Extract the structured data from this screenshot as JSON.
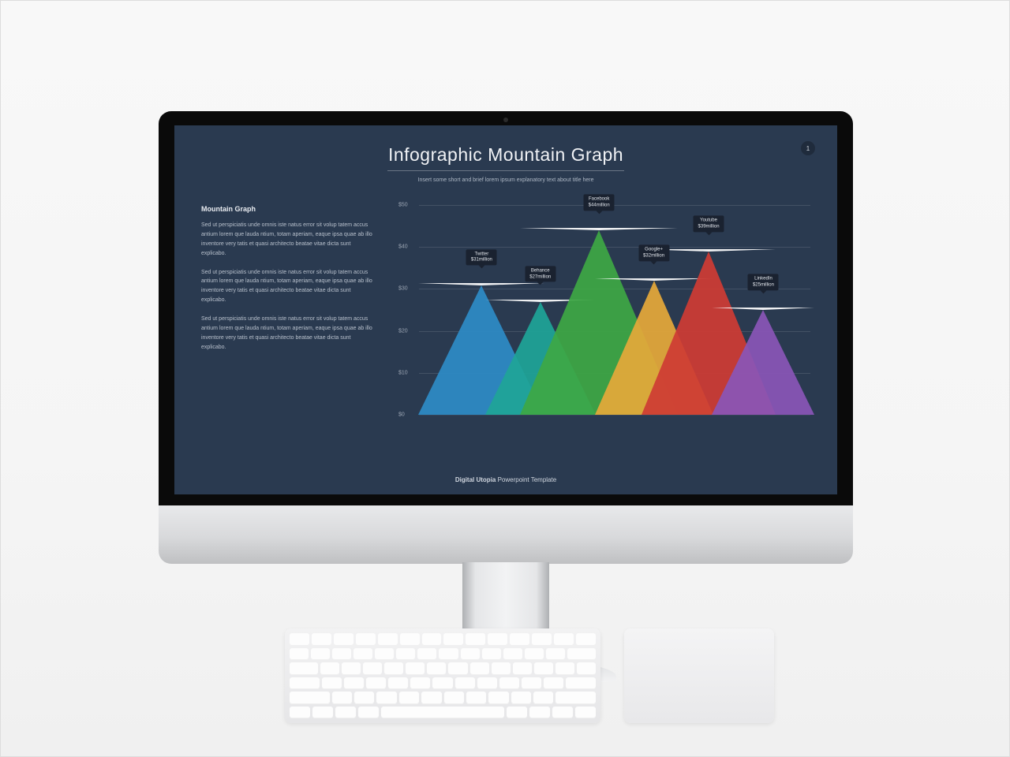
{
  "slide": {
    "background_color": "#2a3a50",
    "page_number": "1",
    "title": "Infographic Mountain Graph",
    "title_fontsize": 23,
    "title_color": "#f0f2f5",
    "subtitle": "Insert some short and brief lorem ipsum explanatory text about title here",
    "subtitle_fontsize": 7
  },
  "sidebar": {
    "heading": "Mountain Graph",
    "paragraphs": [
      "Sed ut perspiciatis unde omnis iste natus error sit volup tatem accus antium lorem que lauda ntium, totam aperiam, eaque ipsa quae ab illo inventore very tatis et quasi architecto beatae vitae dicta sunt explicabo.",
      "Sed ut perspiciatis unde omnis iste natus error sit volup tatem accus antium lorem que lauda ntium, totam aperiam, eaque ipsa quae ab illo inventore very tatis et quasi architecto beatae vitae dicta sunt explicabo.",
      "Sed ut perspiciatis unde omnis iste natus error sit volup tatem accus antium lorem que lauda ntium, totam aperiam, eaque ipsa quae ab illo inventore very tatis et quasi architecto beatae vitae dicta sunt explicabo."
    ]
  },
  "chart": {
    "type": "mountain-triangle",
    "ylim": [
      0,
      50
    ],
    "ytick_step": 10,
    "ytick_labels": [
      "$0",
      "$10",
      "$20",
      "$30",
      "$40",
      "$50"
    ],
    "grid_color": "rgba(255,255,255,0.12)",
    "label_bg": "#1a2230",
    "label_fontsize": 6,
    "series": [
      {
        "name": "Twitter",
        "value": 31,
        "value_label": "$31million",
        "color": "#2e8cc7",
        "center_pct": 16,
        "halfwidth_pct": 16
      },
      {
        "name": "Behance",
        "value": 27,
        "value_label": "$27million",
        "color": "#1fa598",
        "center_pct": 31,
        "halfwidth_pct": 14,
        "darker": "#178a80"
      },
      {
        "name": "Facebook",
        "value": 44,
        "value_label": "$44million",
        "color": "#3ea845",
        "center_pct": 46,
        "halfwidth_pct": 20,
        "darker": "#2f8a36"
      },
      {
        "name": "Google+",
        "value": 32,
        "value_label": "$32million",
        "color": "#e6a93a",
        "center_pct": 60,
        "halfwidth_pct": 15,
        "darker": "#c7902f"
      },
      {
        "name": "Youtube",
        "value": 39,
        "value_label": "$39million",
        "color": "#cf3c34",
        "center_pct": 74,
        "halfwidth_pct": 17,
        "darker": "#b0322b"
      },
      {
        "name": "LinkedIn",
        "value": 25,
        "value_label": "$25million",
        "color": "#8a56b8",
        "center_pct": 88,
        "halfwidth_pct": 13,
        "darker": "#7346a0"
      }
    ]
  },
  "footer": {
    "brand": "Digital Utopia",
    "suffix": " Powerpoint Template"
  }
}
